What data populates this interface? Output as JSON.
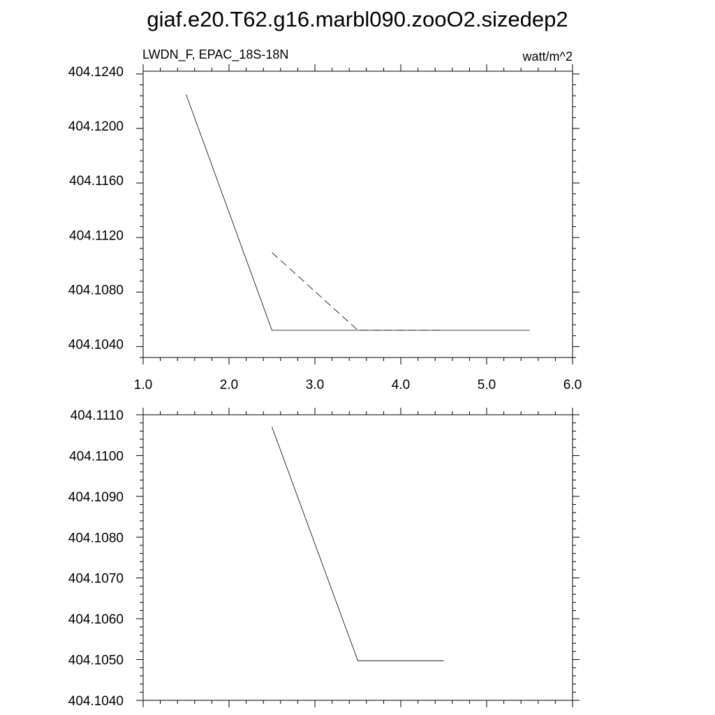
{
  "figure": {
    "title": "giaf.e20.T62.g16.marbl090.zooO2.sizedep2"
  },
  "chart_data": [
    {
      "type": "line",
      "left_label": "LWDN_F, EPAC_18S-18N",
      "right_label": "watt/m^2",
      "xlim": [
        1.0,
        6.0
      ],
      "ylim": [
        404.103,
        404.124
      ],
      "x_ticks": [
        1.0,
        2.0,
        3.0,
        4.0,
        5.0,
        6.0
      ],
      "x_tick_labels": [
        "1.0",
        "2.0",
        "3.0",
        "4.0",
        "5.0",
        "6.0"
      ],
      "y_ticks": [
        404.104,
        404.108,
        404.112,
        404.116,
        404.12,
        404.124
      ],
      "y_tick_labels": [
        "404.1040",
        "404.1080",
        "404.1120",
        "404.1160",
        "404.1200",
        "404.1240"
      ],
      "grid": false,
      "series": [
        {
          "style": "solid",
          "x": [
            1.5,
            2.5,
            3.5,
            4.5,
            5.5
          ],
          "y": [
            404.1223,
            404.105,
            404.105,
            404.105,
            404.105
          ]
        },
        {
          "style": "dashed",
          "x": [
            2.5,
            3.5,
            4.5
          ],
          "y": [
            404.1107,
            404.105,
            404.105
          ]
        }
      ]
    },
    {
      "type": "line",
      "xlim": [
        1.0,
        6.0
      ],
      "ylim": [
        404.104,
        404.111
      ],
      "x_ticks": [
        1.0,
        2.0,
        3.0,
        4.0,
        5.0,
        6.0
      ],
      "y_ticks": [
        404.104,
        404.105,
        404.106,
        404.107,
        404.108,
        404.109,
        404.11,
        404.111
      ],
      "y_tick_labels": [
        "404.1040",
        "404.1050",
        "404.1060",
        "404.1070",
        "404.1080",
        "404.1090",
        "404.1100",
        "404.1110"
      ],
      "grid": false,
      "series": [
        {
          "style": "solid",
          "x": [
            2.5,
            3.5,
            4.5
          ],
          "y": [
            404.1107,
            404.10497,
            404.10497
          ]
        }
      ]
    }
  ]
}
